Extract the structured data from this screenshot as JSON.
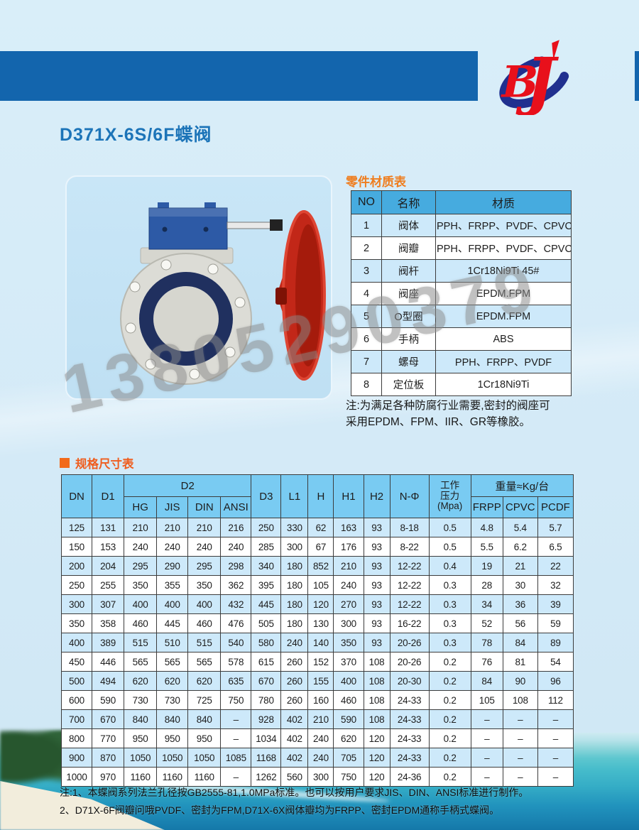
{
  "page": {
    "title": "D371X-6S/6F蝶阀",
    "logo_b": "B",
    "logo_j": "J",
    "watermark": "13805290379"
  },
  "colors": {
    "header_bar_blue": "#1365ad",
    "title_blue": "#1c74b8",
    "accent_orange": "#ef7d1e",
    "materials_header_blue": "#46abdf",
    "specs_header_blue": "#79cbf2",
    "row_stripe_blue": "#cde9fa",
    "logo_red": "#e8101b",
    "logo_navy": "#20308f",
    "valve_handle_red": "#c22718",
    "valve_gearbox_blue": "#2d5aa6"
  },
  "materials": {
    "label": "零件材质表",
    "headers": [
      "NO",
      "名称",
      "材质"
    ],
    "rows": [
      [
        "1",
        "阀体",
        "PPH、FRPP、PVDF、CPVC"
      ],
      [
        "2",
        "阀瓣",
        "PPH、FRPP、PVDF、CPVC"
      ],
      [
        "3",
        "阀杆",
        "1Cr18Ni9Ti 45#"
      ],
      [
        "4",
        "阀座",
        "EPDM.FPM"
      ],
      [
        "5",
        "O型圈",
        "EPDM.FPM"
      ],
      [
        "6",
        "手柄",
        "ABS"
      ],
      [
        "7",
        "螺母",
        "PPH、FRPP、PVDF"
      ],
      [
        "8",
        "定位板",
        "1Cr18Ni9Ti"
      ]
    ],
    "note": [
      "注:为满足各种防腐行业需要,密封的阀座可",
      "采用EPDM、FPM、IIR、GR等橡胶。"
    ]
  },
  "specs": {
    "label": "规格尺寸表",
    "headers": {
      "dn": "DN",
      "d1": "D1",
      "d2": "D2",
      "hg": "HG",
      "jis": "JIS",
      "din": "DIN",
      "ansi": "ANSI",
      "d3": "D3",
      "l1": "L1",
      "h": "H",
      "h1": "H1",
      "h2": "H2",
      "n_phi": "N-Φ",
      "pressure_1": "工作",
      "pressure_2": "压力",
      "pressure_3": "(Mpa)",
      "weight": "重量≈Kg/台",
      "frpp": "FRPP",
      "cpvc": "CPVC",
      "pcdf": "PCDF"
    },
    "rows": [
      [
        "125",
        "131",
        "210",
        "210",
        "210",
        "216",
        "250",
        "330",
        "62",
        "163",
        "93",
        "8-18",
        "0.5",
        "4.8",
        "5.4",
        "5.7"
      ],
      [
        "150",
        "153",
        "240",
        "240",
        "240",
        "240",
        "285",
        "300",
        "67",
        "176",
        "93",
        "8-22",
        "0.5",
        "5.5",
        "6.2",
        "6.5"
      ],
      [
        "200",
        "204",
        "295",
        "290",
        "295",
        "298",
        "340",
        "180",
        "852",
        "210",
        "93",
        "12-22",
        "0.4",
        "19",
        "21",
        "22"
      ],
      [
        "250",
        "255",
        "350",
        "355",
        "350",
        "362",
        "395",
        "180",
        "105",
        "240",
        "93",
        "12-22",
        "0.3",
        "28",
        "30",
        "32"
      ],
      [
        "300",
        "307",
        "400",
        "400",
        "400",
        "432",
        "445",
        "180",
        "120",
        "270",
        "93",
        "12-22",
        "0.3",
        "34",
        "36",
        "39"
      ],
      [
        "350",
        "358",
        "460",
        "445",
        "460",
        "476",
        "505",
        "180",
        "130",
        "300",
        "93",
        "16-22",
        "0.3",
        "52",
        "56",
        "59"
      ],
      [
        "400",
        "389",
        "515",
        "510",
        "515",
        "540",
        "580",
        "240",
        "140",
        "350",
        "93",
        "20-26",
        "0.3",
        "78",
        "84",
        "89"
      ],
      [
        "450",
        "446",
        "565",
        "565",
        "565",
        "578",
        "615",
        "260",
        "152",
        "370",
        "108",
        "20-26",
        "0.2",
        "76",
        "81",
        "54"
      ],
      [
        "500",
        "494",
        "620",
        "620",
        "620",
        "635",
        "670",
        "260",
        "155",
        "400",
        "108",
        "20-30",
        "0.2",
        "84",
        "90",
        "96"
      ],
      [
        "600",
        "590",
        "730",
        "730",
        "725",
        "750",
        "780",
        "260",
        "160",
        "460",
        "108",
        "24-33",
        "0.2",
        "105",
        "108",
        "112"
      ],
      [
        "700",
        "670",
        "840",
        "840",
        "840",
        "–",
        "928",
        "402",
        "210",
        "590",
        "108",
        "24-33",
        "0.2",
        "–",
        "–",
        "–"
      ],
      [
        "800",
        "770",
        "950",
        "950",
        "950",
        "–",
        "1034",
        "402",
        "240",
        "620",
        "120",
        "24-33",
        "0.2",
        "–",
        "–",
        "–"
      ],
      [
        "900",
        "870",
        "1050",
        "1050",
        "1050",
        "1085",
        "1168",
        "402",
        "240",
        "705",
        "120",
        "24-33",
        "0.2",
        "–",
        "–",
        "–"
      ],
      [
        "1000",
        "970",
        "1160",
        "1160",
        "1160",
        "–",
        "1262",
        "560",
        "300",
        "750",
        "120",
        "24-36",
        "0.2",
        "–",
        "–",
        "–"
      ]
    ]
  },
  "footnotes": [
    "注:1、本蝶阀系列法兰孔径按GB2555-81,1.0MPa标准。也可以按用户要求JIS、DIN、ANSI标准进行制作。",
    "2、D71X-6F阀瓣问哦PVDF、密封为FPM,D71X-6X阀体瓣均为FRPP、密封EPDM通称手柄式蝶阀。"
  ]
}
